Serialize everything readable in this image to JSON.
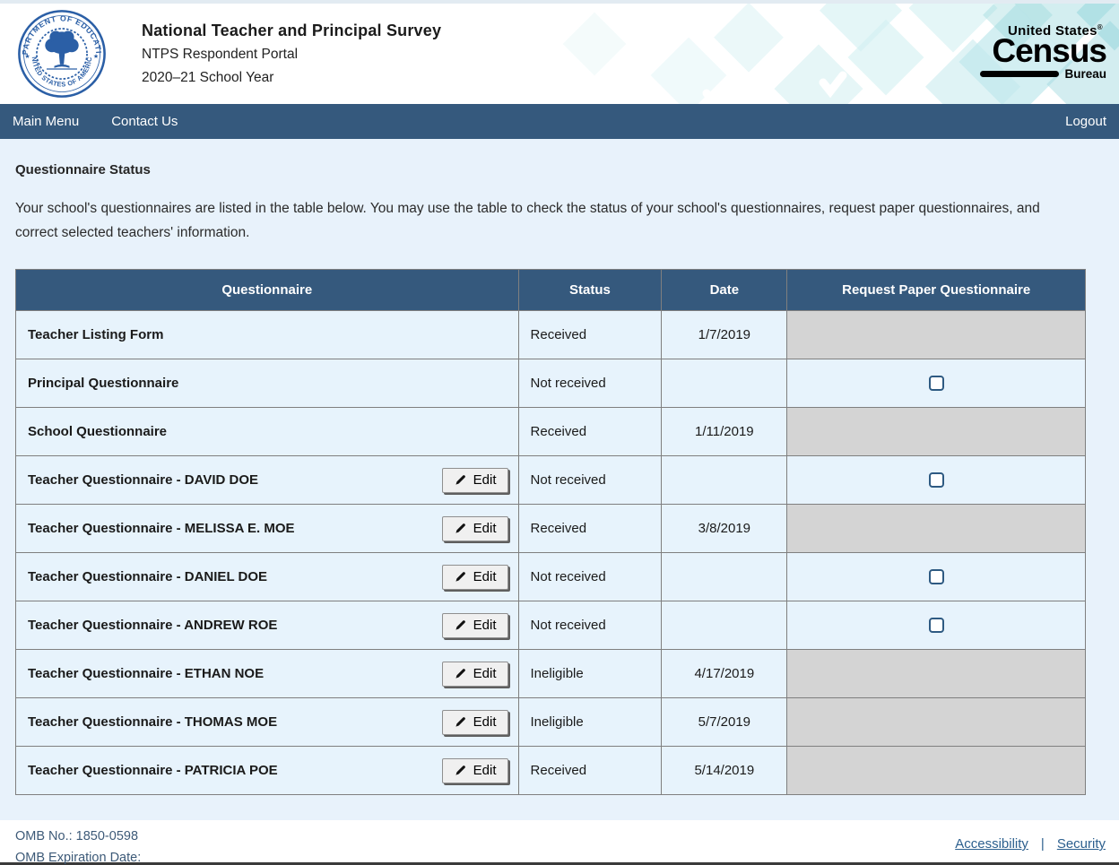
{
  "header": {
    "title": "National Teacher and Principal Survey",
    "subtitle": "NTPS Respondent Portal",
    "school_year": "2020–21 School Year",
    "seal": {
      "top_text": "DEPARTMENT OF EDUCATION",
      "bottom_text": "UNITED STATES OF AMERICA"
    },
    "census_logo": {
      "top": "United States",
      "registered": "®",
      "main": "Census",
      "bottom": "Bureau"
    }
  },
  "nav": {
    "items": [
      {
        "label": "Main Menu"
      },
      {
        "label": "Contact Us"
      }
    ],
    "logout": "Logout"
  },
  "page": {
    "heading": "Questionnaire Status",
    "description": "Your school's questionnaires are listed in the table below. You may use the table to check the status of your school's questionnaires, request paper questionnaires, and correct selected teachers' information."
  },
  "table": {
    "headers": [
      "Questionnaire",
      "Status",
      "Date",
      "Request Paper Questionnaire"
    ],
    "edit_label": "Edit",
    "rows": [
      {
        "name": "Teacher Listing Form",
        "edit": false,
        "status": "Received",
        "date": "1/7/2019",
        "request": "disabled"
      },
      {
        "name": "Principal Questionnaire",
        "edit": false,
        "status": "Not received",
        "date": "",
        "request": "checkbox"
      },
      {
        "name": "School Questionnaire",
        "edit": false,
        "status": "Received",
        "date": "1/11/2019",
        "request": "disabled"
      },
      {
        "name": "Teacher Questionnaire - DAVID DOE",
        "edit": true,
        "status": "Not received",
        "date": "",
        "request": "checkbox"
      },
      {
        "name": "Teacher Questionnaire - MELISSA E. MOE",
        "edit": true,
        "status": "Received",
        "date": "3/8/2019",
        "request": "disabled"
      },
      {
        "name": "Teacher Questionnaire - DANIEL DOE",
        "edit": true,
        "status": "Not received",
        "date": "",
        "request": "checkbox"
      },
      {
        "name": "Teacher Questionnaire - ANDREW ROE",
        "edit": true,
        "status": "Not received",
        "date": "",
        "request": "checkbox"
      },
      {
        "name": "Teacher Questionnaire - ETHAN NOE",
        "edit": true,
        "status": "Ineligible",
        "date": "4/17/2019",
        "request": "disabled"
      },
      {
        "name": "Teacher Questionnaire - THOMAS MOE",
        "edit": true,
        "status": "Ineligible",
        "date": "5/7/2019",
        "request": "disabled"
      },
      {
        "name": "Teacher Questionnaire - PATRICIA POE",
        "edit": true,
        "status": "Received",
        "date": "5/14/2019",
        "request": "disabled"
      }
    ]
  },
  "footer": {
    "omb_no": "OMB No.: 1850-0598",
    "omb_expiration": "OMB Expiration Date:",
    "links": [
      "Accessibility",
      "Security"
    ],
    "separator": "|"
  },
  "colors": {
    "navy": "#35597d",
    "row_blue": "#e7f3fc",
    "page_blue": "#e8f2fb",
    "disabled_gray": "#d4d4d4",
    "seal_blue": "#2b5fa6",
    "link_blue": "#2c5f8e"
  }
}
